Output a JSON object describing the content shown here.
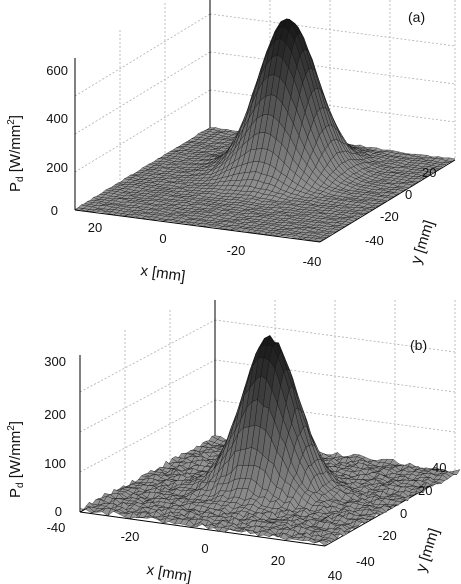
{
  "chart_data": [
    {
      "type": "surface",
      "panel_label": "(a)",
      "zlabel_main": "P",
      "zlabel_sub": "d",
      "zlabel_unit": "[W/mm",
      "zlabel_exp": "2",
      "zlabel_close": "]",
      "xlabel": "x [mm]",
      "ylabel": "y [mm]",
      "x_ticks": [
        "20",
        "0",
        "-20",
        "-40"
      ],
      "y_ticks": [
        "20",
        "0",
        "-20",
        "-40"
      ],
      "z_ticks": [
        "0",
        "200",
        "400",
        "600"
      ],
      "xlim": [
        -55,
        25
      ],
      "ylim": [
        -50,
        25
      ],
      "zlim": [
        0,
        650
      ],
      "peak": {
        "x": -15,
        "y": 0,
        "z": 650
      },
      "sigma_mm": 8.5,
      "noise": "low",
      "grid": true
    },
    {
      "type": "surface",
      "panel_label": "(b)",
      "zlabel_main": "P",
      "zlabel_sub": "d",
      "zlabel_unit": "[W/mm",
      "zlabel_exp": "2",
      "zlabel_close": "]",
      "xlabel": "x [mm]",
      "ylabel": "y [mm]",
      "x_ticks": [
        "-40",
        "-20",
        "0",
        "20",
        "40"
      ],
      "y_ticks": [
        "40",
        "20",
        "0",
        "-20",
        "-40"
      ],
      "z_ticks": [
        "0",
        "100",
        "200",
        "300"
      ],
      "xlim": [
        -40,
        40
      ],
      "ylim": [
        -45,
        45
      ],
      "zlim": [
        0,
        340
      ],
      "peak": {
        "x": 0,
        "y": 0,
        "z": 330
      },
      "sigma_mm": 8.5,
      "noise": "high",
      "grid": true
    }
  ]
}
